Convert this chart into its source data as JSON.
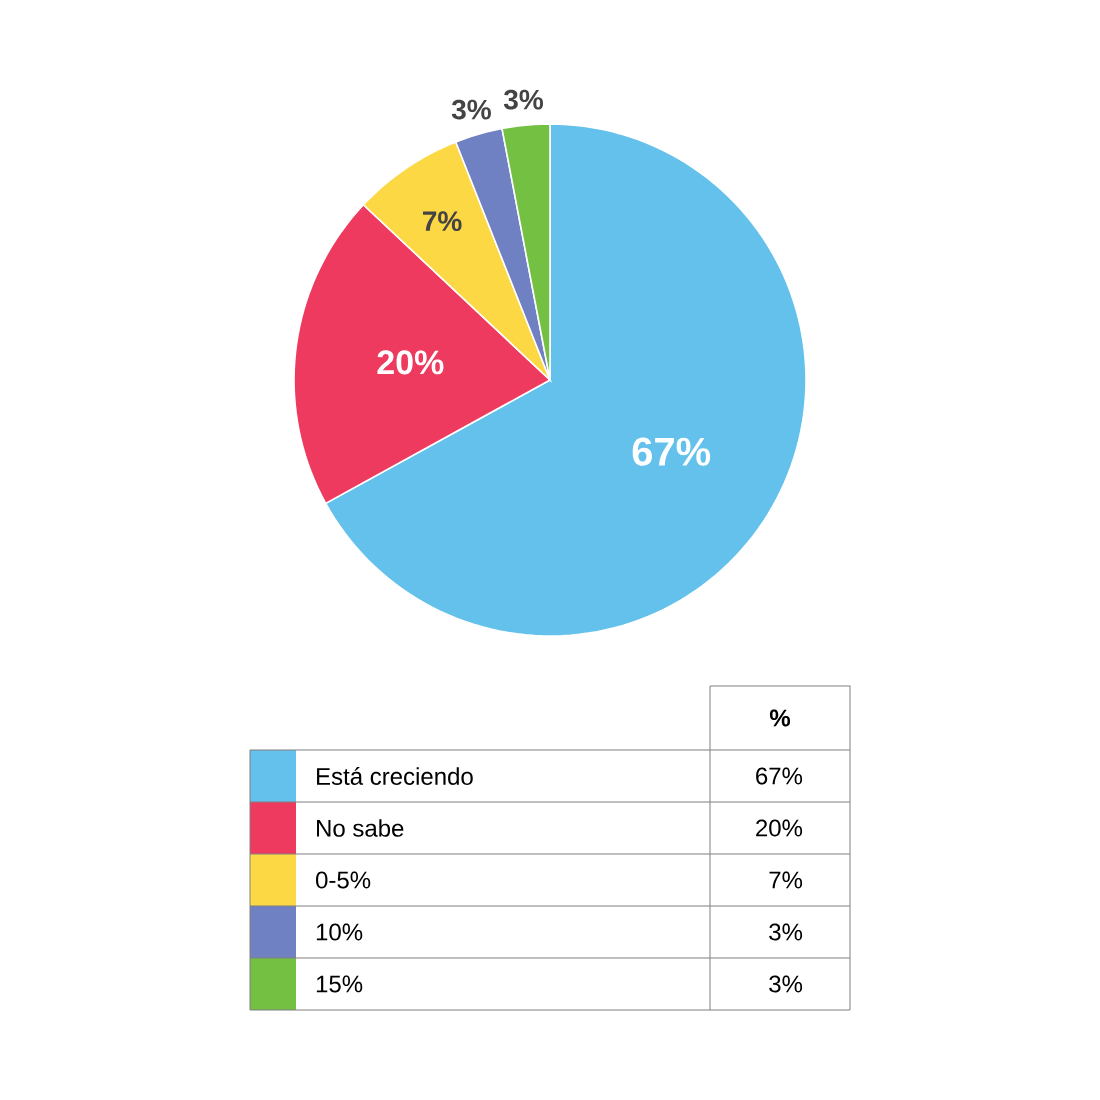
{
  "chart_data": {
    "type": "pie",
    "categories": [
      "Está creciendo",
      "No sabe",
      "0-5%",
      "10%",
      "15%"
    ],
    "values": [
      67,
      20,
      7,
      3,
      3
    ],
    "colors": [
      "#63c1ec",
      "#ee3a5e",
      "#fcd844",
      "#6f80c3",
      "#74c043"
    ],
    "value_labels": [
      "67%",
      "20%",
      "7%",
      "3%",
      "3%"
    ],
    "legend_title": "%",
    "legend": "bottom"
  }
}
